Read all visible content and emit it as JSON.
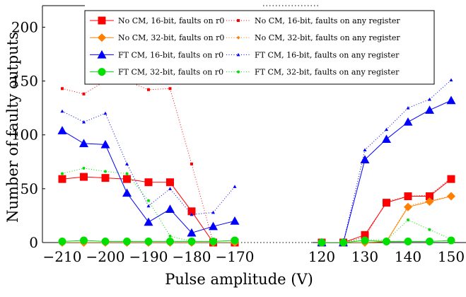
{
  "chart_data": {
    "type": "line",
    "title": "",
    "xlabel": "Pulse amplitude (V)",
    "ylabel": "Number of faulty outputs",
    "ylim": [
      0,
      220
    ],
    "yticks": [
      0,
      50,
      100,
      150,
      200
    ],
    "left_panel": {
      "xlim": [
        -210,
        -170
      ],
      "xticks": [
        -210,
        -200,
        -190,
        -180,
        -170
      ],
      "tick_labels": [
        "−210",
        "−200",
        "−190",
        "−180",
        "−170"
      ]
    },
    "right_panel": {
      "xlim": [
        120,
        150
      ],
      "xticks": [
        120,
        130,
        140,
        150
      ],
      "tick_labels": [
        "120",
        "130",
        "140",
        "150"
      ]
    },
    "legend_position": "top",
    "series": [
      {
        "name": "No CM, 16-bit, faults on r0",
        "color": "#ff0000",
        "marker": "square-large",
        "style": "solid",
        "left": [
          [
            -210,
            59
          ],
          [
            -205,
            61
          ],
          [
            -200,
            60
          ],
          [
            -195,
            59
          ],
          [
            -190,
            56
          ],
          [
            -185,
            56
          ],
          [
            -180,
            29
          ],
          [
            -175,
            0
          ],
          [
            -170,
            0
          ]
        ],
        "right": [
          [
            120,
            0
          ],
          [
            125,
            0
          ],
          [
            130,
            7
          ],
          [
            135,
            37
          ],
          [
            140,
            43
          ],
          [
            145,
            43
          ],
          [
            150,
            59
          ]
        ]
      },
      {
        "name": "No CM, 16-bit, faults on any register",
        "color": "#ff0000",
        "marker": "square-small",
        "style": "dotted",
        "left": [
          [
            -210,
            143
          ],
          [
            -205,
            138
          ],
          [
            -200,
            150
          ],
          [
            -195,
            150
          ],
          [
            -190,
            142
          ],
          [
            -185,
            143
          ],
          [
            -180,
            73
          ],
          [
            -175,
            0
          ],
          [
            -170,
            0
          ]
        ],
        "right": [
          [
            120,
            0
          ],
          [
            125,
            0
          ],
          [
            130,
            5
          ],
          [
            135,
            38
          ],
          [
            140,
            43
          ],
          [
            145,
            44
          ],
          [
            150,
            60
          ]
        ]
      },
      {
        "name": "No CM, 32-bit, faults on r0",
        "color": "#ff8000",
        "marker": "diamond-large",
        "style": "solid",
        "left": [
          [
            -210,
            0
          ],
          [
            -205,
            0
          ],
          [
            -200,
            0
          ],
          [
            -195,
            0
          ],
          [
            -190,
            0
          ],
          [
            -185,
            0
          ],
          [
            -180,
            0
          ],
          [
            -175,
            0
          ],
          [
            -170,
            0
          ]
        ],
        "right": [
          [
            120,
            0
          ],
          [
            125,
            0
          ],
          [
            130,
            0
          ],
          [
            135,
            1
          ],
          [
            140,
            33
          ],
          [
            145,
            38
          ],
          [
            150,
            43
          ]
        ]
      },
      {
        "name": "No CM, 32-bit, faults on any register",
        "color": "#ff8000",
        "marker": "diamond-small",
        "style": "dotted",
        "left": [
          [
            -210,
            0
          ],
          [
            -205,
            0
          ],
          [
            -200,
            0
          ],
          [
            -195,
            0
          ],
          [
            -190,
            0
          ],
          [
            -185,
            0
          ],
          [
            -180,
            0
          ],
          [
            -175,
            0
          ],
          [
            -170,
            0
          ]
        ],
        "right": [
          [
            120,
            0
          ],
          [
            125,
            0
          ],
          [
            130,
            0
          ],
          [
            135,
            1
          ],
          [
            140,
            34
          ],
          [
            145,
            39
          ],
          [
            150,
            43
          ]
        ]
      },
      {
        "name": "FT CM, 16-bit, faults on r0",
        "color": "#0000ff",
        "marker": "triangle-large",
        "style": "solid",
        "left": [
          [
            -210,
            104
          ],
          [
            -205,
            92
          ],
          [
            -200,
            91
          ],
          [
            -195,
            46
          ],
          [
            -190,
            19
          ],
          [
            -185,
            31
          ],
          [
            -180,
            9
          ],
          [
            -175,
            15
          ],
          [
            -170,
            20
          ]
        ],
        "right": [
          [
            120,
            0
          ],
          [
            125,
            0
          ],
          [
            130,
            77
          ],
          [
            135,
            96
          ],
          [
            140,
            112
          ],
          [
            145,
            123
          ],
          [
            150,
            132
          ]
        ]
      },
      {
        "name": "FT CM, 16-bit, faults on any register",
        "color": "#0000ff",
        "marker": "triangle-small",
        "style": "dotted",
        "left": [
          [
            -210,
            122
          ],
          [
            -205,
            112
          ],
          [
            -200,
            120
          ],
          [
            -195,
            73
          ],
          [
            -190,
            34
          ],
          [
            -185,
            50
          ],
          [
            -180,
            26
          ],
          [
            -175,
            28
          ],
          [
            -170,
            52
          ]
        ],
        "right": [
          [
            120,
            0
          ],
          [
            125,
            0
          ],
          [
            130,
            86
          ],
          [
            135,
            105
          ],
          [
            140,
            125
          ],
          [
            145,
            133
          ],
          [
            150,
            151
          ]
        ]
      },
      {
        "name": "FT CM, 32-bit, faults on r0",
        "color": "#00e000",
        "marker": "circle-large",
        "style": "solid",
        "left": [
          [
            -210,
            1
          ],
          [
            -205,
            2
          ],
          [
            -200,
            1
          ],
          [
            -195,
            1
          ],
          [
            -190,
            1
          ],
          [
            -185,
            1
          ],
          [
            -180,
            1
          ],
          [
            -175,
            1
          ],
          [
            -170,
            2
          ]
        ],
        "right": [
          [
            120,
            0
          ],
          [
            125,
            0
          ],
          [
            130,
            2
          ],
          [
            135,
            1
          ],
          [
            140,
            1
          ],
          [
            145,
            1
          ],
          [
            150,
            2
          ]
        ]
      },
      {
        "name": "FT CM, 32-bit, faults on any register",
        "color": "#00e000",
        "marker": "circle-small",
        "style": "dotted",
        "left": [
          [
            -210,
            64
          ],
          [
            -205,
            69
          ],
          [
            -200,
            66
          ],
          [
            -195,
            64
          ],
          [
            -190,
            39
          ],
          [
            -185,
            6
          ],
          [
            -180,
            1
          ],
          [
            -175,
            1
          ],
          [
            -170,
            2
          ]
        ],
        "right": [
          [
            120,
            0
          ],
          [
            125,
            0
          ],
          [
            130,
            3
          ],
          [
            135,
            2
          ],
          [
            140,
            21
          ],
          [
            145,
            12
          ],
          [
            150,
            3
          ]
        ]
      }
    ]
  }
}
